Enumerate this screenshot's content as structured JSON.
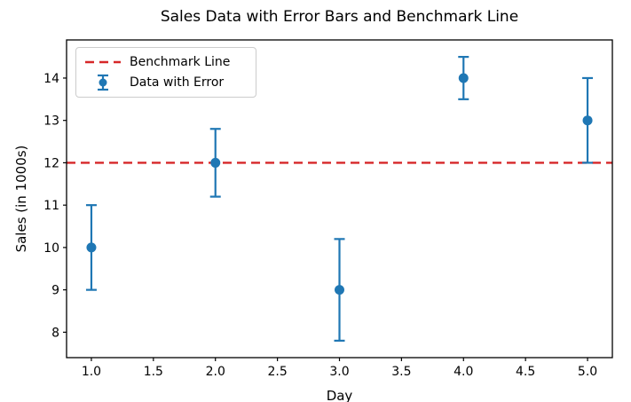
{
  "chart_data": {
    "type": "scatter",
    "title": "Sales Data with Error Bars and Benchmark Line",
    "xlabel": "Day",
    "ylabel": "Sales (in 1000s)",
    "x": [
      1.0,
      2.0,
      3.0,
      4.0,
      5.0
    ],
    "y": [
      10,
      12,
      9,
      14,
      13
    ],
    "yerr": [
      1.0,
      0.8,
      1.2,
      0.5,
      1.0
    ],
    "series_label": "Data with Error",
    "marker": "circle",
    "marker_color": "#1f77b4",
    "benchmark_line": {
      "label": "Benchmark Line",
      "y": 12,
      "color": "#d62728",
      "linestyle": "dashed"
    },
    "xlim": [
      0.8,
      5.2
    ],
    "ylim": [
      7.4,
      14.9
    ],
    "xticks": {
      "values": [
        1.0,
        1.5,
        2.0,
        2.5,
        3.0,
        3.5,
        4.0,
        4.5,
        5.0
      ],
      "labels": [
        "1.0",
        "1.5",
        "2.0",
        "2.5",
        "3.0",
        "3.5",
        "4.0",
        "4.5",
        "5.0"
      ]
    },
    "yticks": {
      "values": [
        8,
        9,
        10,
        11,
        12,
        13,
        14
      ],
      "labels": [
        "8",
        "9",
        "10",
        "11",
        "12",
        "13",
        "14"
      ]
    },
    "legend": {
      "position": "upper left",
      "entries": [
        {
          "label": "Benchmark Line"
        },
        {
          "label": "Data with Error"
        }
      ]
    },
    "grid": false
  }
}
